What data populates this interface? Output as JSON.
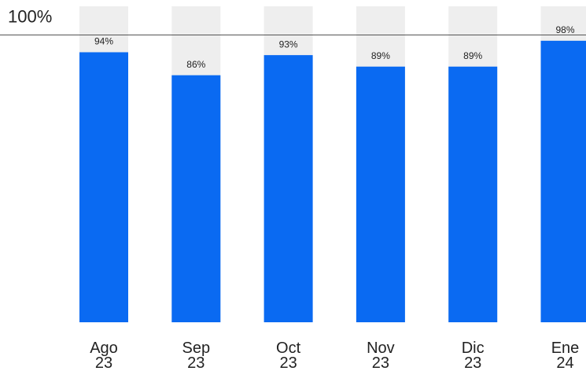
{
  "chart_data": {
    "type": "bar",
    "categories": [
      "Ago 23",
      "Sep 23",
      "Oct 23",
      "Nov 23",
      "Dic 23",
      "Ene 24"
    ],
    "values": [
      94,
      86,
      93,
      89,
      89,
      98
    ],
    "value_labels": [
      "94%",
      "86%",
      "93%",
      "89%",
      "89%",
      "98%"
    ],
    "color": "#0a6af2",
    "track_color": "#eeeeee",
    "ylim": [
      0,
      110
    ],
    "yticks": [
      {
        "value": 100,
        "label": "100%"
      }
    ]
  }
}
